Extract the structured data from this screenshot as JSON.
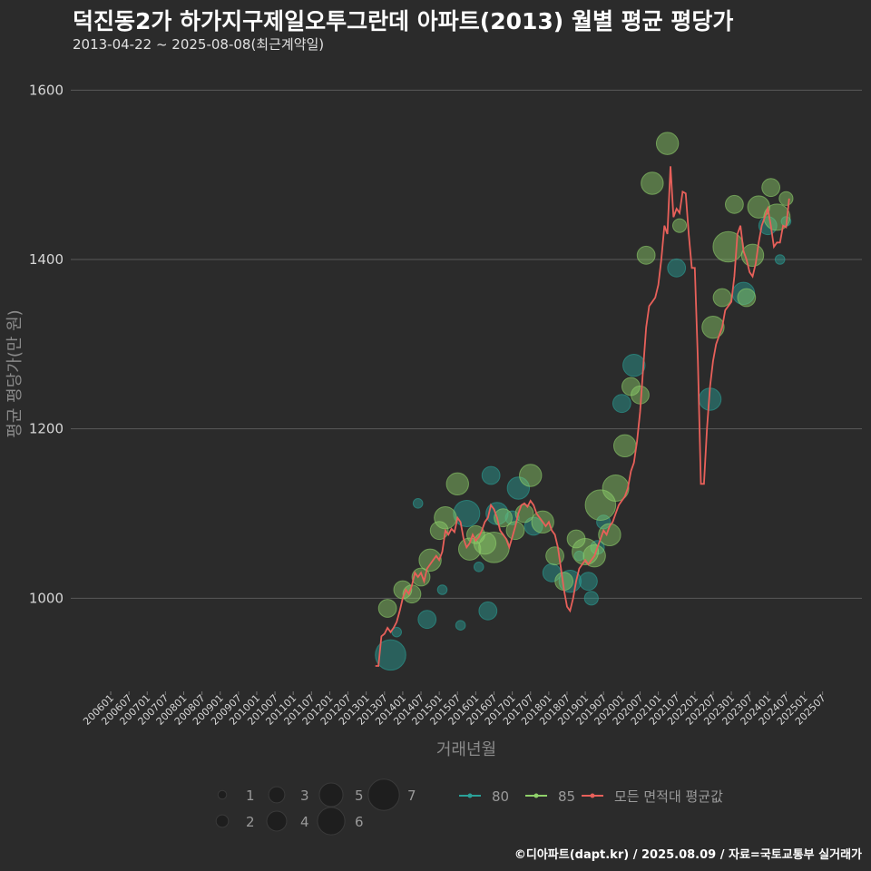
{
  "header": {
    "title": "덕진동2가 하가지구제일오투그란데 아파트(2013) 월별 평균 평당가",
    "subtitle": "2013-04-22 ~ 2025-08-08(최근계약일)"
  },
  "footer": {
    "credit": "©디아파트(dapt.kr) / 2025.08.09 / 자료=국토교통부 실거래가"
  },
  "colors": {
    "background": "#2b2b2b",
    "grid": "#5a5a5a",
    "series_80": "#2aa198",
    "series_85": "#8fd16a",
    "avg_line": "#e8605a"
  },
  "chart_data": {
    "type": "scatter",
    "title": "덕진동2가 하가지구제일오투그란데 아파트(2013) 월별 평균 평당가",
    "xlabel": "거래년월",
    "ylabel": "평균 평당가(만 원)",
    "ylim": [
      890,
      1640
    ],
    "yticks": [
      1000,
      1200,
      1400,
      1600
    ],
    "xtick_labels": [
      "200601",
      "200607",
      "200701",
      "200707",
      "200801",
      "200807",
      "200901",
      "200907",
      "201001",
      "201007",
      "201101",
      "201107",
      "201201",
      "201207",
      "201301",
      "201307",
      "201401",
      "201407",
      "201501",
      "201507",
      "201601",
      "201607",
      "201701",
      "201707",
      "201801",
      "201807",
      "201901",
      "201907",
      "202001",
      "202007",
      "202101",
      "202107",
      "202201",
      "202207",
      "202301",
      "202307",
      "202401",
      "202407",
      "202501",
      "202507"
    ],
    "grid": true,
    "legend": {
      "placement": "bottom",
      "size_entries": [
        "1",
        "2",
        "3",
        "4",
        "5",
        "6",
        "7"
      ],
      "series_entries": [
        "80",
        "85",
        "모든 면적대 평균값"
      ]
    },
    "series": [
      {
        "name": "모든 면적대 평균값",
        "kind": "line",
        "points": [
          [
            "2013-04",
            920
          ],
          [
            "2013-05",
            920
          ],
          [
            "2013-06",
            955
          ],
          [
            "2013-07",
            958
          ],
          [
            "2013-08",
            965
          ],
          [
            "2013-09",
            960
          ],
          [
            "2013-10",
            965
          ],
          [
            "2013-11",
            972
          ],
          [
            "2013-12",
            985
          ],
          [
            "2014-01",
            1000
          ],
          [
            "2014-02",
            1010
          ],
          [
            "2014-03",
            1005
          ],
          [
            "2014-04",
            1015
          ],
          [
            "2014-05",
            1030
          ],
          [
            "2014-06",
            1025
          ],
          [
            "2014-07",
            1030
          ],
          [
            "2014-08",
            1020
          ],
          [
            "2014-09",
            1035
          ],
          [
            "2014-10",
            1040
          ],
          [
            "2014-11",
            1045
          ],
          [
            "2014-12",
            1050
          ],
          [
            "2015-01",
            1045
          ],
          [
            "2015-02",
            1055
          ],
          [
            "2015-03",
            1080
          ],
          [
            "2015-04",
            1075
          ],
          [
            "2015-05",
            1082
          ],
          [
            "2015-06",
            1078
          ],
          [
            "2015-07",
            1095
          ],
          [
            "2015-08",
            1090
          ],
          [
            "2015-09",
            1070
          ],
          [
            "2015-10",
            1060
          ],
          [
            "2015-11",
            1065
          ],
          [
            "2015-12",
            1075
          ],
          [
            "2016-01",
            1068
          ],
          [
            "2016-02",
            1072
          ],
          [
            "2016-03",
            1080
          ],
          [
            "2016-04",
            1090
          ],
          [
            "2016-05",
            1095
          ],
          [
            "2016-06",
            1110
          ],
          [
            "2016-07",
            1105
          ],
          [
            "2016-08",
            1095
          ],
          [
            "2016-09",
            1080
          ],
          [
            "2016-10",
            1075
          ],
          [
            "2016-11",
            1070
          ],
          [
            "2016-12",
            1060
          ],
          [
            "2017-01",
            1072
          ],
          [
            "2017-02",
            1085
          ],
          [
            "2017-03",
            1100
          ],
          [
            "2017-04",
            1110
          ],
          [
            "2017-05",
            1112
          ],
          [
            "2017-06",
            1108
          ],
          [
            "2017-07",
            1115
          ],
          [
            "2017-08",
            1110
          ],
          [
            "2017-09",
            1100
          ],
          [
            "2017-10",
            1095
          ],
          [
            "2017-11",
            1090
          ],
          [
            "2017-12",
            1085
          ],
          [
            "2018-01",
            1090
          ],
          [
            "2018-02",
            1080
          ],
          [
            "2018-03",
            1075
          ],
          [
            "2018-04",
            1060
          ],
          [
            "2018-05",
            1035
          ],
          [
            "2018-06",
            1010
          ],
          [
            "2018-07",
            990
          ],
          [
            "2018-08",
            985
          ],
          [
            "2018-09",
            1000
          ],
          [
            "2018-10",
            1020
          ],
          [
            "2018-11",
            1035
          ],
          [
            "2018-12",
            1040
          ],
          [
            "2019-01",
            1045
          ],
          [
            "2019-02",
            1040
          ],
          [
            "2019-03",
            1045
          ],
          [
            "2019-04",
            1050
          ],
          [
            "2019-05",
            1060
          ],
          [
            "2019-06",
            1070
          ],
          [
            "2019-07",
            1080
          ],
          [
            "2019-08",
            1075
          ],
          [
            "2019-09",
            1085
          ],
          [
            "2019-10",
            1090
          ],
          [
            "2019-11",
            1100
          ],
          [
            "2019-12",
            1110
          ],
          [
            "2020-01",
            1115
          ],
          [
            "2020-02",
            1120
          ],
          [
            "2020-03",
            1130
          ],
          [
            "2020-04",
            1150
          ],
          [
            "2020-05",
            1160
          ],
          [
            "2020-06",
            1185
          ],
          [
            "2020-07",
            1220
          ],
          [
            "2020-08",
            1270
          ],
          [
            "2020-09",
            1320
          ],
          [
            "2020-10",
            1345
          ],
          [
            "2020-11",
            1350
          ],
          [
            "2020-12",
            1355
          ],
          [
            "2021-01",
            1370
          ],
          [
            "2021-02",
            1400
          ],
          [
            "2021-03",
            1440
          ],
          [
            "2021-04",
            1430
          ],
          [
            "2021-05",
            1510
          ],
          [
            "2021-06",
            1450
          ],
          [
            "2021-07",
            1460
          ],
          [
            "2021-08",
            1455
          ],
          [
            "2021-09",
            1480
          ],
          [
            "2021-10",
            1478
          ],
          [
            "2021-11",
            1430
          ],
          [
            "2021-12",
            1390
          ],
          [
            "2022-01",
            1390
          ],
          [
            "2022-02",
            1280
          ],
          [
            "2022-03",
            1135
          ],
          [
            "2022-04",
            1135
          ],
          [
            "2022-05",
            1200
          ],
          [
            "2022-06",
            1250
          ],
          [
            "2022-07",
            1280
          ],
          [
            "2022-08",
            1300
          ],
          [
            "2022-09",
            1310
          ],
          [
            "2022-10",
            1320
          ],
          [
            "2022-11",
            1340
          ],
          [
            "2022-12",
            1345
          ],
          [
            "2023-01",
            1350
          ],
          [
            "2023-02",
            1380
          ],
          [
            "2023-03",
            1430
          ],
          [
            "2023-04",
            1440
          ],
          [
            "2023-05",
            1410
          ],
          [
            "2023-06",
            1400
          ],
          [
            "2023-07",
            1385
          ],
          [
            "2023-08",
            1380
          ],
          [
            "2023-09",
            1395
          ],
          [
            "2023-10",
            1420
          ],
          [
            "2023-11",
            1440
          ],
          [
            "2023-12",
            1450
          ],
          [
            "2024-01",
            1460
          ],
          [
            "2024-02",
            1440
          ],
          [
            "2024-03",
            1415
          ],
          [
            "2024-04",
            1420
          ],
          [
            "2024-05",
            1420
          ],
          [
            "2024-06",
            1440
          ],
          [
            "2024-07",
            1438
          ],
          [
            "2024-08",
            1472
          ]
        ]
      },
      {
        "name": "80",
        "kind": "bubble",
        "points": [
          [
            "2013-09",
            933,
            6
          ],
          [
            "2013-11",
            960,
            1
          ],
          [
            "2014-06",
            1112,
            1
          ],
          [
            "2014-09",
            975,
            3
          ],
          [
            "2015-02",
            1010,
            1
          ],
          [
            "2015-08",
            968,
            1
          ],
          [
            "2015-10",
            1100,
            5
          ],
          [
            "2016-02",
            1037,
            1
          ],
          [
            "2016-05",
            985,
            3
          ],
          [
            "2016-06",
            1145,
            3
          ],
          [
            "2016-08",
            1100,
            4
          ],
          [
            "2017-01",
            1095,
            2
          ],
          [
            "2017-03",
            1130,
            4
          ],
          [
            "2017-08",
            1085,
            3
          ],
          [
            "2018-02",
            1030,
            3
          ],
          [
            "2018-08",
            1020,
            4
          ],
          [
            "2018-11",
            1050,
            1
          ],
          [
            "2019-02",
            1020,
            3
          ],
          [
            "2019-03",
            1000,
            2
          ],
          [
            "2019-05",
            1060,
            2
          ],
          [
            "2019-07",
            1090,
            2
          ],
          [
            "2020-01",
            1230,
            3
          ],
          [
            "2020-05",
            1275,
            4
          ],
          [
            "2021-07",
            1390,
            3
          ],
          [
            "2022-06",
            1235,
            4
          ],
          [
            "2023-05",
            1360,
            4
          ],
          [
            "2024-01",
            1440,
            3
          ],
          [
            "2024-05",
            1400,
            1
          ],
          [
            "2024-07",
            1445,
            1
          ]
        ]
      },
      {
        "name": "85",
        "kind": "bubble",
        "points": [
          [
            "2013-08",
            988,
            3
          ],
          [
            "2014-01",
            1010,
            3
          ],
          [
            "2014-04",
            1005,
            3
          ],
          [
            "2014-07",
            1025,
            3
          ],
          [
            "2014-10",
            1045,
            4
          ],
          [
            "2015-01",
            1080,
            3
          ],
          [
            "2015-03",
            1095,
            4
          ],
          [
            "2015-07",
            1135,
            4
          ],
          [
            "2015-11",
            1058,
            4
          ],
          [
            "2016-01",
            1075,
            3
          ],
          [
            "2016-04",
            1065,
            4
          ],
          [
            "2016-07",
            1060,
            6
          ],
          [
            "2016-10",
            1095,
            3
          ],
          [
            "2017-02",
            1080,
            3
          ],
          [
            "2017-05",
            1100,
            3
          ],
          [
            "2017-07",
            1145,
            4
          ],
          [
            "2017-11",
            1090,
            4
          ],
          [
            "2018-03",
            1050,
            3
          ],
          [
            "2018-06",
            1020,
            3
          ],
          [
            "2018-10",
            1070,
            3
          ],
          [
            "2019-01",
            1055,
            5
          ],
          [
            "2019-04",
            1050,
            4
          ],
          [
            "2019-06",
            1110,
            6
          ],
          [
            "2019-09",
            1075,
            4
          ],
          [
            "2019-11",
            1130,
            5
          ],
          [
            "2020-02",
            1180,
            4
          ],
          [
            "2020-04",
            1250,
            3
          ],
          [
            "2020-07",
            1240,
            3
          ],
          [
            "2020-09",
            1405,
            3
          ],
          [
            "2020-11",
            1490,
            4
          ],
          [
            "2021-04",
            1537,
            4
          ],
          [
            "2021-08",
            1440,
            2
          ],
          [
            "2022-07",
            1320,
            4
          ],
          [
            "2022-10",
            1355,
            3
          ],
          [
            "2022-12",
            1415,
            6
          ],
          [
            "2023-02",
            1465,
            3
          ],
          [
            "2023-06",
            1355,
            3
          ],
          [
            "2023-08",
            1405,
            4
          ],
          [
            "2023-10",
            1462,
            4
          ],
          [
            "2024-02",
            1485,
            3
          ],
          [
            "2024-04",
            1450,
            5
          ],
          [
            "2024-07",
            1472,
            2
          ]
        ]
      }
    ]
  }
}
